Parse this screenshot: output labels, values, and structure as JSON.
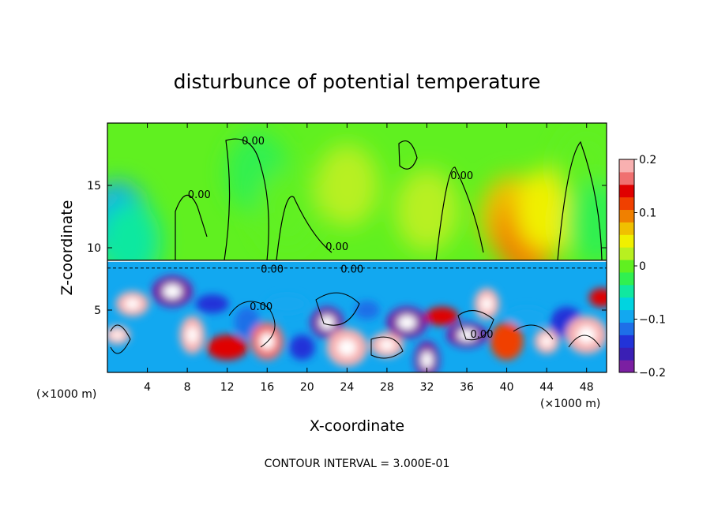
{
  "chart_data": {
    "type": "heatmap",
    "title": "disturbunce of potential temperature",
    "xlabel": "X-coordinate",
    "ylabel": "Z-coordinate",
    "x_unit": "(×1000 m)",
    "x_unit_right": "(×1000 m)",
    "xlim": [
      0,
      50
    ],
    "ylim": [
      0,
      20
    ],
    "x_ticks": [
      4,
      8,
      12,
      16,
      20,
      24,
      28,
      32,
      36,
      40,
      44,
      48
    ],
    "y_ticks": [
      5,
      10,
      15
    ],
    "footer": "CONTOUR INTERVAL = 3.000E-01",
    "colorbar": {
      "min": -0.2,
      "max": 0.2,
      "tick_values": [
        0.2,
        0.1,
        0,
        -0.1,
        -0.2
      ],
      "tick_labels": [
        "0.2",
        "0.1",
        "0",
        "−0.1",
        "−0.2"
      ],
      "colors": [
        "#7b1fa2",
        "#3a1fb5",
        "#2233d8",
        "#1e6fe8",
        "#12a8f0",
        "#00d4e0",
        "#10e8a0",
        "#30f050",
        "#60f020",
        "#b8f020",
        "#f0f000",
        "#f0c000",
        "#f08000",
        "#f04000",
        "#e00000",
        "#f07070",
        "#f8b0b0"
      ]
    },
    "contour_labels": [
      {
        "text": "0.00",
        "x": 14.6,
        "y": 18.3
      },
      {
        "text": "0.00",
        "x": 9.2,
        "y": 14.0
      },
      {
        "text": "0.00",
        "x": 23.0,
        "y": 9.8
      },
      {
        "text": "0.00",
        "x": 35.5,
        "y": 15.5
      },
      {
        "text": "0.00",
        "x": 16.5,
        "y": 8.0
      },
      {
        "text": "0.00",
        "x": 24.5,
        "y": 8.0
      },
      {
        "text": "0.00",
        "x": 15.4,
        "y": 5.0
      },
      {
        "text": "0.00",
        "x": 37.5,
        "y": 2.8
      }
    ],
    "fields": {
      "background": 0.0,
      "upper_band": [
        {
          "x": 1.0,
          "y": 12.0,
          "v": -0.09
        },
        {
          "x": 2.2,
          "y": 10.5,
          "v": -0.06
        },
        {
          "x": 15.0,
          "y": 16.0,
          "v": -0.03
        },
        {
          "x": 18.0,
          "y": 13.0,
          "v": 0.01
        },
        {
          "x": 24.0,
          "y": 15.0,
          "v": 0.02
        },
        {
          "x": 32.0,
          "y": 13.0,
          "v": 0.03
        },
        {
          "x": 40.5,
          "y": 12.5,
          "v": 0.07
        },
        {
          "x": 42.0,
          "y": 11.0,
          "v": 0.1
        },
        {
          "x": 44.0,
          "y": 13.0,
          "v": 0.06
        },
        {
          "x": 48.0,
          "y": 16.5,
          "v": 0.01
        },
        {
          "x": 49.0,
          "y": 12.0,
          "v": -0.02
        }
      ],
      "lower_band": [
        {
          "x": 1.0,
          "y": 3.0,
          "v": 0.2
        },
        {
          "x": 2.5,
          "y": 5.5,
          "v": 0.2
        },
        {
          "x": 6.5,
          "y": 6.5,
          "v": -0.2
        },
        {
          "x": 8.5,
          "y": 3.0,
          "v": 0.2
        },
        {
          "x": 10.5,
          "y": 5.5,
          "v": -0.15
        },
        {
          "x": 12.0,
          "y": 2.0,
          "v": 0.15
        },
        {
          "x": 14.0,
          "y": 4.0,
          "v": -0.12
        },
        {
          "x": 16.0,
          "y": 2.5,
          "v": 0.18
        },
        {
          "x": 18.0,
          "y": 5.5,
          "v": -0.1
        },
        {
          "x": 19.5,
          "y": 2.0,
          "v": -0.15
        },
        {
          "x": 22.0,
          "y": 4.0,
          "v": -0.2
        },
        {
          "x": 24.0,
          "y": 2.0,
          "v": 0.2
        },
        {
          "x": 26.0,
          "y": 5.0,
          "v": -0.12
        },
        {
          "x": 28.0,
          "y": 2.2,
          "v": 0.2
        },
        {
          "x": 30.0,
          "y": 4.0,
          "v": -0.2
        },
        {
          "x": 32.0,
          "y": 1.0,
          "v": -0.2
        },
        {
          "x": 33.5,
          "y": 4.5,
          "v": 0.15
        },
        {
          "x": 36.0,
          "y": 3.0,
          "v": -0.2
        },
        {
          "x": 38.0,
          "y": 5.5,
          "v": 0.2
        },
        {
          "x": 40.0,
          "y": 2.5,
          "v": 0.12
        },
        {
          "x": 42.0,
          "y": 4.5,
          "v": -0.1
        },
        {
          "x": 44.0,
          "y": 2.5,
          "v": 0.2
        },
        {
          "x": 46.0,
          "y": 4.0,
          "v": -0.15
        },
        {
          "x": 48.0,
          "y": 3.0,
          "v": 0.2
        },
        {
          "x": 49.5,
          "y": 6.0,
          "v": 0.15
        }
      ]
    },
    "layer_top": 9.0,
    "legend": "right colorbar",
    "grid": false
  }
}
